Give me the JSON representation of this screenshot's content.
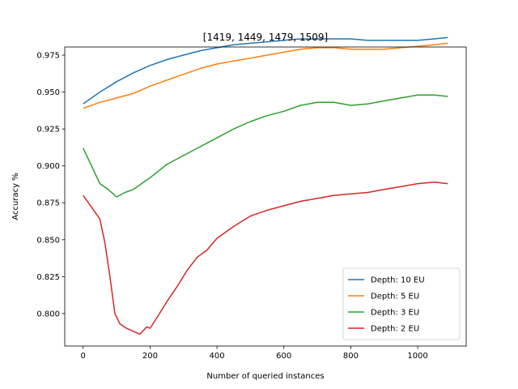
{
  "chart_data": {
    "type": "line",
    "title": "[1419, 1449, 1479, 1509]",
    "xlabel": "Number of queried instances",
    "ylabel": "Accuracy %",
    "xlim": [
      -55,
      1145
    ],
    "ylim": [
      0.778,
      0.9805
    ],
    "xticks": [
      0,
      200,
      400,
      600,
      800,
      1000
    ],
    "yticks": [
      0.8,
      0.825,
      0.85,
      0.875,
      0.9,
      0.925,
      0.95,
      0.975
    ],
    "grid": false,
    "legend": "lower-right",
    "series": [
      {
        "name": "Depth: 10 EU",
        "color": "#1f77b4",
        "x": [
          0,
          50,
          100,
          150,
          200,
          250,
          300,
          350,
          400,
          450,
          500,
          550,
          600,
          650,
          700,
          750,
          800,
          850,
          900,
          950,
          1000,
          1050,
          1090
        ],
        "y": [
          0.942,
          0.95,
          0.957,
          0.963,
          0.968,
          0.972,
          0.975,
          0.978,
          0.98,
          0.982,
          0.983,
          0.984,
          0.985,
          0.986,
          0.986,
          0.986,
          0.986,
          0.985,
          0.985,
          0.985,
          0.985,
          0.986,
          0.987
        ]
      },
      {
        "name": "Depth: 5 EU",
        "color": "#ff7f0e",
        "x": [
          0,
          50,
          100,
          150,
          200,
          250,
          300,
          350,
          400,
          450,
          500,
          550,
          600,
          650,
          700,
          750,
          800,
          850,
          900,
          950,
          1000,
          1050,
          1090
        ],
        "y": [
          0.939,
          0.943,
          0.946,
          0.949,
          0.954,
          0.958,
          0.962,
          0.966,
          0.969,
          0.971,
          0.973,
          0.975,
          0.977,
          0.979,
          0.98,
          0.98,
          0.979,
          0.979,
          0.979,
          0.98,
          0.981,
          0.982,
          0.983
        ]
      },
      {
        "name": "Depth: 3 EU",
        "color": "#2ca02c",
        "x": [
          0,
          25,
          50,
          75,
          100,
          125,
          150,
          200,
          250,
          300,
          350,
          400,
          450,
          500,
          550,
          600,
          650,
          700,
          750,
          800,
          850,
          900,
          950,
          1000,
          1050,
          1090
        ],
        "y": [
          0.912,
          0.9,
          0.888,
          0.884,
          0.879,
          0.882,
          0.884,
          0.892,
          0.901,
          0.907,
          0.913,
          0.919,
          0.925,
          0.93,
          0.934,
          0.937,
          0.941,
          0.943,
          0.943,
          0.941,
          0.942,
          0.944,
          0.946,
          0.948,
          0.948,
          0.947
        ]
      },
      {
        "name": "Depth: 2 EU",
        "color": "#d62728",
        "x": [
          0,
          25,
          50,
          65,
          80,
          95,
          110,
          130,
          150,
          170,
          190,
          200,
          220,
          250,
          280,
          310,
          340,
          370,
          400,
          450,
          500,
          550,
          600,
          650,
          700,
          750,
          800,
          850,
          900,
          950,
          1000,
          1050,
          1090
        ],
        "y": [
          0.88,
          0.872,
          0.864,
          0.848,
          0.825,
          0.8,
          0.793,
          0.79,
          0.788,
          0.786,
          0.791,
          0.79,
          0.797,
          0.808,
          0.818,
          0.829,
          0.838,
          0.843,
          0.851,
          0.859,
          0.866,
          0.87,
          0.873,
          0.876,
          0.878,
          0.88,
          0.881,
          0.882,
          0.884,
          0.886,
          0.888,
          0.889,
          0.888
        ]
      }
    ]
  }
}
